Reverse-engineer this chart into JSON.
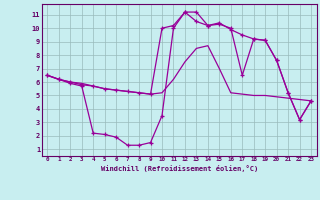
{
  "xlabel": "Windchill (Refroidissement éolien,°C)",
  "bg_color": "#c8eef0",
  "grid_color": "#a0cccc",
  "line_color": "#990099",
  "x_ticks": [
    0,
    1,
    2,
    3,
    4,
    5,
    6,
    7,
    8,
    9,
    10,
    11,
    12,
    13,
    14,
    15,
    16,
    17,
    18,
    19,
    20,
    21,
    22,
    23
  ],
  "y_ticks": [
    1,
    2,
    3,
    4,
    5,
    6,
    7,
    8,
    9,
    10,
    11
  ],
  "ylim": [
    0.5,
    11.8
  ],
  "xlim": [
    -0.5,
    23.5
  ],
  "line1_x": [
    0,
    1,
    2,
    3,
    4,
    5,
    6,
    7,
    8,
    9,
    10,
    11,
    12,
    13,
    14,
    15,
    16,
    17,
    18,
    19,
    20,
    21,
    22,
    23
  ],
  "line1_y": [
    6.5,
    6.2,
    5.9,
    5.7,
    2.2,
    2.1,
    1.9,
    1.3,
    1.3,
    1.5,
    3.5,
    10.0,
    11.2,
    11.2,
    10.2,
    10.3,
    10.0,
    6.5,
    9.2,
    9.1,
    7.6,
    5.2,
    3.2,
    4.6
  ],
  "line2_x": [
    0,
    1,
    2,
    3,
    4,
    5,
    6,
    7,
    8,
    9,
    10,
    11,
    12,
    13,
    14,
    15,
    16,
    17,
    18,
    19,
    20,
    21,
    22,
    23
  ],
  "line2_y": [
    6.5,
    6.2,
    6.0,
    5.9,
    5.7,
    5.5,
    5.4,
    5.3,
    5.2,
    5.1,
    5.2,
    6.2,
    7.5,
    8.5,
    8.7,
    7.0,
    5.2,
    5.1,
    5.0,
    5.0,
    4.9,
    4.8,
    4.7,
    4.6
  ],
  "line3_x": [
    0,
    1,
    2,
    3,
    4,
    5,
    6,
    7,
    8,
    9,
    10,
    11,
    12,
    13,
    14,
    15,
    16,
    17,
    18,
    19,
    20,
    21,
    22,
    23
  ],
  "line3_y": [
    6.5,
    6.2,
    6.0,
    5.8,
    5.7,
    5.5,
    5.4,
    5.3,
    5.2,
    5.1,
    10.0,
    10.2,
    11.2,
    10.5,
    10.2,
    10.4,
    9.9,
    9.5,
    9.2,
    9.1,
    7.6,
    5.2,
    3.2,
    4.6
  ]
}
